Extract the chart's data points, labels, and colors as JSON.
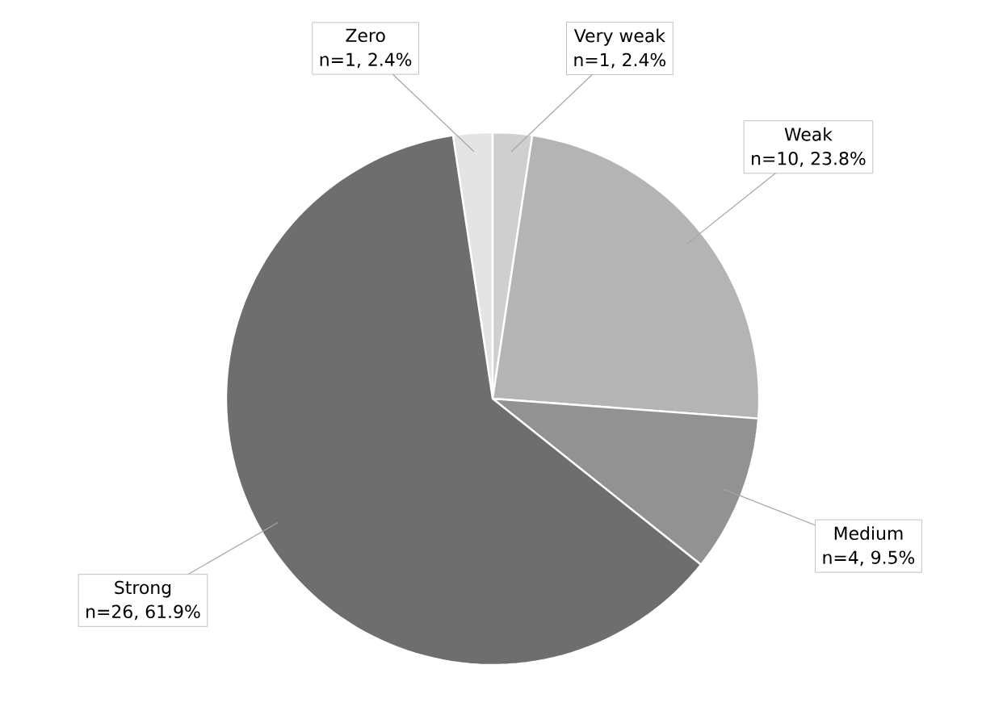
{
  "chart_data": {
    "type": "pie",
    "categories": [
      "Zero",
      "Very weak",
      "Weak",
      "Medium",
      "Strong"
    ],
    "values": [
      1,
      1,
      10,
      4,
      26
    ],
    "value_labels": [
      "n=1, 2.4%",
      "n=1, 2.4%",
      "n=10, 23.8%",
      "n=4, 9.5%",
      "n=26, 61.9%"
    ],
    "colors": [
      "#e4e4e4",
      "#cfcfcf",
      "#b4b4b4",
      "#929292",
      "#6e6e6e"
    ]
  }
}
